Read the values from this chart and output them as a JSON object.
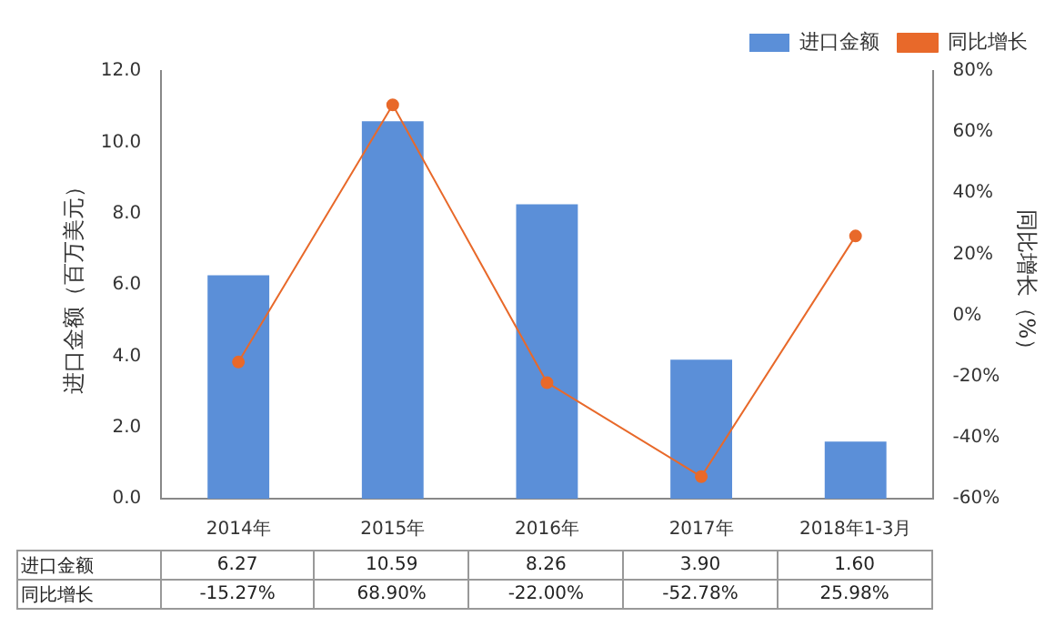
{
  "chart_data": {
    "type": "bar",
    "categories": [
      "2014年",
      "2015年",
      "2016年",
      "2017年",
      "2018年1-3月"
    ],
    "ylabel": "进口金额（百万美元）",
    "y2label": "同比增长（%）",
    "ylim": [
      0,
      12
    ],
    "yticks": [
      {
        "value": 0,
        "label": "0.0"
      },
      {
        "value": 2,
        "label": "2.0"
      },
      {
        "value": 4,
        "label": "4.0"
      },
      {
        "value": 6,
        "label": "6.0"
      },
      {
        "value": 8,
        "label": "8.0"
      },
      {
        "value": 10,
        "label": "10.0"
      },
      {
        "value": 12,
        "label": "12.0"
      }
    ],
    "y2lim": [
      -60,
      80
    ],
    "y2ticks": [
      {
        "value": -60,
        "label": "-60%"
      },
      {
        "value": -40,
        "label": "-40%"
      },
      {
        "value": -20,
        "label": "-20%"
      },
      {
        "value": 0,
        "label": "0%"
      },
      {
        "value": 20,
        "label": "20%"
      },
      {
        "value": 40,
        "label": "40%"
      },
      {
        "value": 60,
        "label": "60%"
      },
      {
        "value": 80,
        "label": "80%"
      }
    ],
    "series": [
      {
        "name": "进口金额",
        "color": "#5b8fd8",
        "values": [
          6.27,
          10.59,
          8.26,
          3.9,
          1.6
        ],
        "value_labels": [
          "6.27",
          "10.59",
          "8.26",
          "3.90",
          "1.60"
        ]
      },
      {
        "name": "同比增长",
        "type": "line",
        "axis": "y2",
        "color": "#e8692a",
        "values": [
          -15.27,
          68.9,
          -22.0,
          -52.78,
          25.98
        ],
        "value_labels": [
          "-15.27%",
          "68.90%",
          "-22.00%",
          "-52.78%",
          "25.98%"
        ]
      }
    ],
    "legend": "top right",
    "grid": false,
    "marker": "circle",
    "line_style": "solid"
  }
}
